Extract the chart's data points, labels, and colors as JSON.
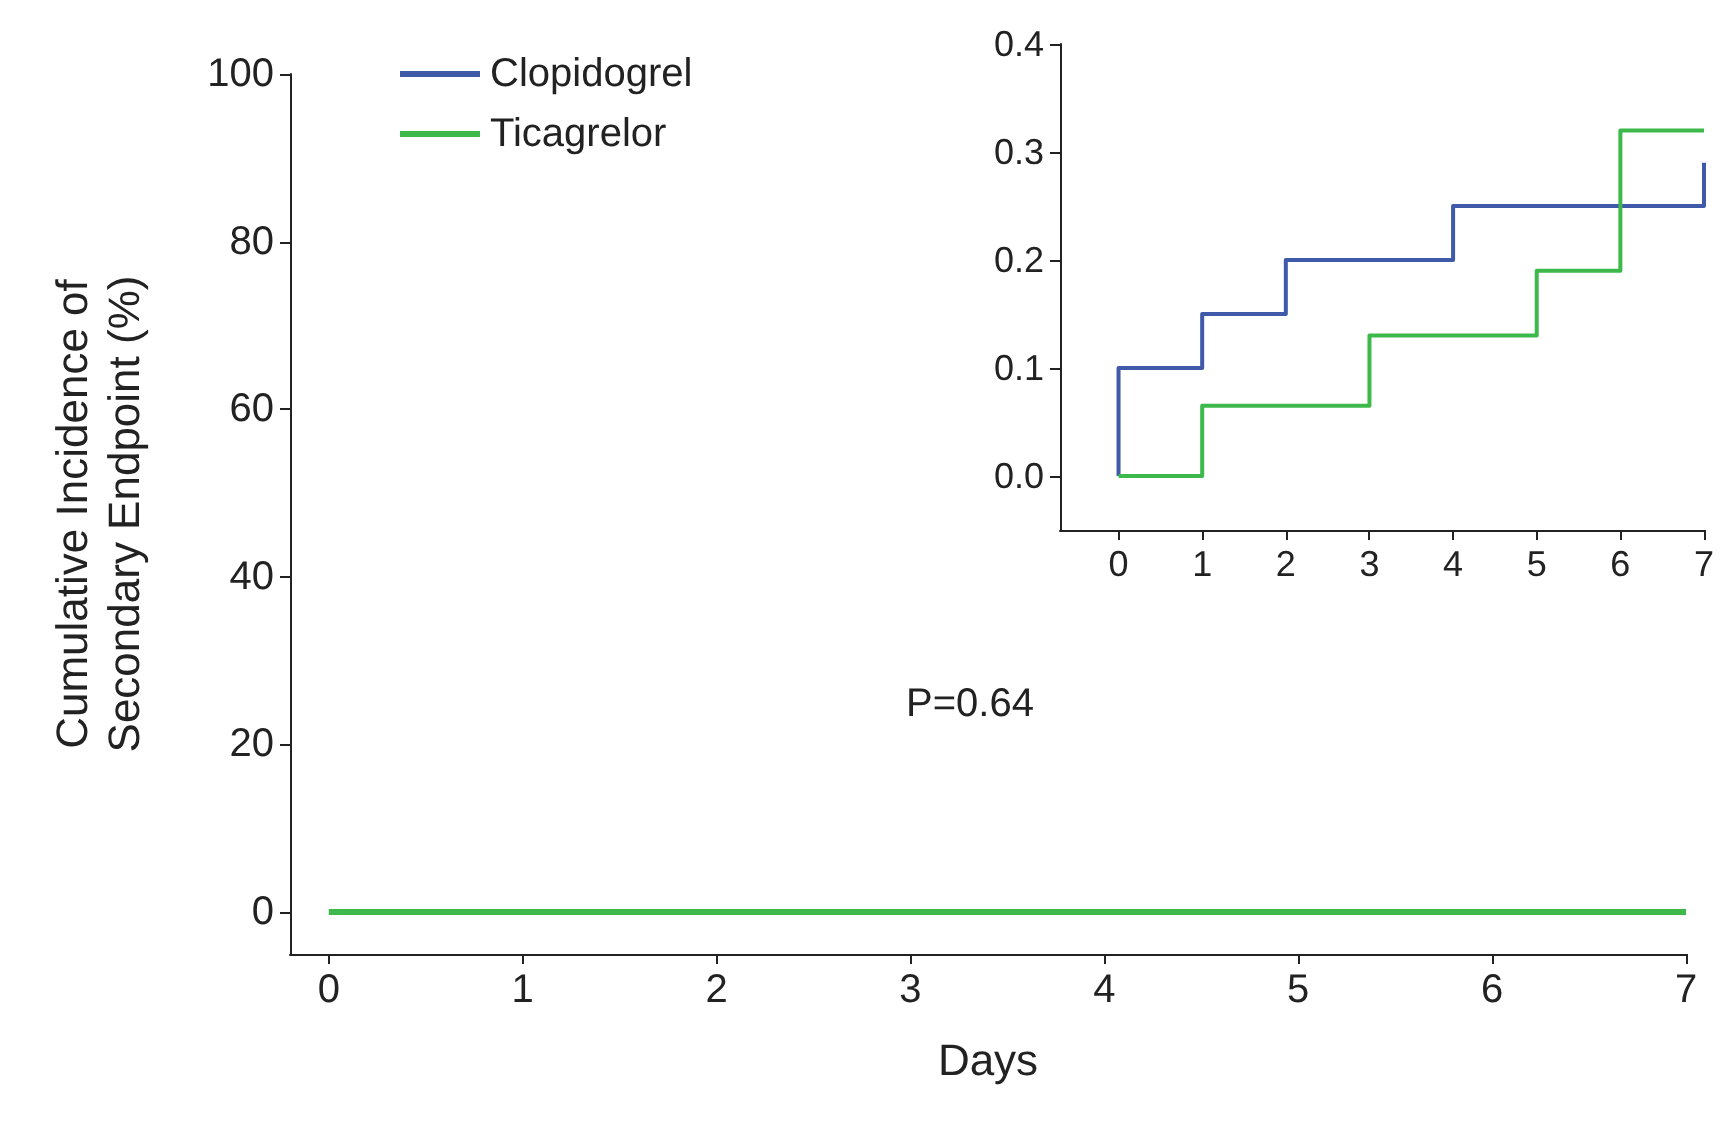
{
  "chart_data": [
    {
      "type": "step",
      "xlabel": "Days",
      "ylabel": "Cumulative Incidence of\nSecondary Endpoint (%)",
      "xlim": [
        -0.2,
        7
      ],
      "xticks": [
        0,
        1,
        2,
        3,
        4,
        5,
        6,
        7
      ],
      "ylim": [
        -5,
        100
      ],
      "yticks": [
        0,
        20,
        40,
        60,
        80,
        100
      ],
      "legend": "top left",
      "grid": false,
      "annotations": [
        "P=0.64"
      ],
      "series": [
        {
          "name": "Clopidogrel",
          "color": "#3f5aa8"
        },
        {
          "name": "Ticagrelor",
          "color": "#3cb94a",
          "x": [
            0,
            7
          ],
          "values": [
            0,
            0
          ]
        }
      ]
    },
    {
      "type": "step",
      "xlim": [
        -0.7,
        7
      ],
      "xticks": [
        0,
        1,
        2,
        3,
        4,
        5,
        6,
        7
      ],
      "ylim": [
        -0.05,
        0.4
      ],
      "yticks": [
        {
          "value": 0,
          "label": "0.0"
        },
        {
          "value": 0.1,
          "label": "0.1"
        },
        {
          "value": 0.2,
          "label": "0.2"
        },
        {
          "value": 0.3,
          "label": "0.3"
        },
        {
          "value": 0.4,
          "label": "0.4"
        }
      ],
      "legend": false,
      "grid": false,
      "series": [
        {
          "color": "#3f5aa8",
          "x": [
            0,
            0,
            1,
            2,
            4,
            7,
            7
          ],
          "values": [
            0,
            0.1,
            0.15,
            0.2,
            0.25,
            0.25,
            0.29
          ]
        },
        {
          "color": "#3cb94a",
          "x": [
            0,
            1,
            3,
            5,
            6,
            7
          ],
          "values": [
            0,
            0.065,
            0.13,
            0.19,
            0.32,
            0.32
          ]
        }
      ]
    }
  ]
}
